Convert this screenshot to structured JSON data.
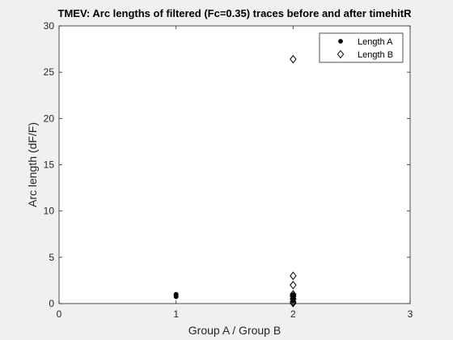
{
  "window": {
    "background": "#f0f0f0",
    "plot_background": "#ffffff"
  },
  "chart_data": {
    "type": "scatter",
    "title": "TMEV: Arc lengths of filtered (Fc=0.35) traces before and after timehitR",
    "xlabel": "Group A / Group B",
    "ylabel": "Arc length (dF/F)",
    "xlim": [
      0,
      3
    ],
    "ylim": [
      0,
      30
    ],
    "xticks": [
      "0",
      "1",
      "2",
      "3"
    ],
    "yticks": [
      "0",
      "5",
      "10",
      "15",
      "20",
      "25",
      "30"
    ],
    "grid": false,
    "legend_position": "top-right",
    "series": [
      {
        "name": "Length A",
        "marker": "filled-circle",
        "color": "#000000",
        "points": [
          [
            1,
            0.75
          ],
          [
            1,
            0.85
          ],
          [
            1,
            0.95
          ],
          [
            1,
            1.0
          ],
          [
            2,
            0.3
          ],
          [
            2,
            0.45
          ],
          [
            2,
            0.55
          ],
          [
            2,
            0.65
          ],
          [
            2,
            0.75
          ],
          [
            2,
            0.85
          ],
          [
            2,
            0.95
          ]
        ]
      },
      {
        "name": "Length B",
        "marker": "open-diamond",
        "color": "#000000",
        "points": [
          [
            2,
            26.4
          ],
          [
            2,
            3.0
          ],
          [
            2,
            2.0
          ],
          [
            2,
            1.0
          ],
          [
            2,
            0.8
          ],
          [
            2,
            0.5
          ],
          [
            2,
            0.2
          ],
          [
            2,
            0.05
          ]
        ]
      }
    ]
  }
}
